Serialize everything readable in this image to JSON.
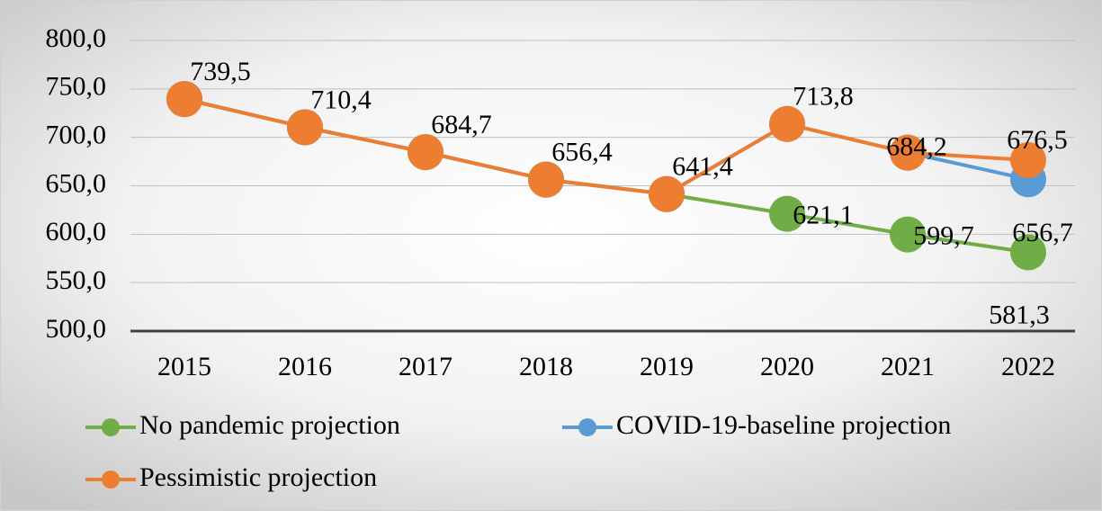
{
  "chart_data": {
    "type": "line",
    "categories": [
      "2015",
      "2016",
      "2017",
      "2018",
      "2019",
      "2020",
      "2021",
      "2022"
    ],
    "series": [
      {
        "name": "No pandemic projection",
        "color": "#70ad47",
        "values": [
          739.5,
          710.4,
          684.7,
          656.4,
          641.4,
          621.1,
          599.7,
          581.3
        ],
        "value_labels": [
          null,
          null,
          null,
          null,
          null,
          "621,1",
          "599,7",
          "581,3"
        ]
      },
      {
        "name": "COVID-19-baseline projection",
        "color": "#5b9bd5",
        "values": [
          739.5,
          710.4,
          684.7,
          656.4,
          641.4,
          713.8,
          684.2,
          656.7
        ],
        "value_labels": [
          null,
          null,
          null,
          null,
          null,
          null,
          null,
          "656,7"
        ]
      },
      {
        "name": "Pessimistic projection",
        "color": "#ed7d31",
        "values": [
          739.5,
          710.4,
          684.7,
          656.4,
          641.4,
          713.8,
          684.2,
          676.5
        ],
        "value_labels": [
          "739,5",
          "710,4",
          "684,7",
          "656,4",
          "641,4",
          "713,8",
          "684,2",
          "676,5"
        ]
      }
    ],
    "ylim": [
      500,
      800
    ],
    "yticks": [
      {
        "value": 500,
        "label": "500,0"
      },
      {
        "value": 550,
        "label": "550,0"
      },
      {
        "value": 600,
        "label": "600,0"
      },
      {
        "value": 650,
        "label": "650,0"
      },
      {
        "value": 700,
        "label": "700,0"
      },
      {
        "value": 750,
        "label": "750,0"
      },
      {
        "value": 800,
        "label": "800,0"
      }
    ],
    "grid": true,
    "legend": "bottom"
  }
}
